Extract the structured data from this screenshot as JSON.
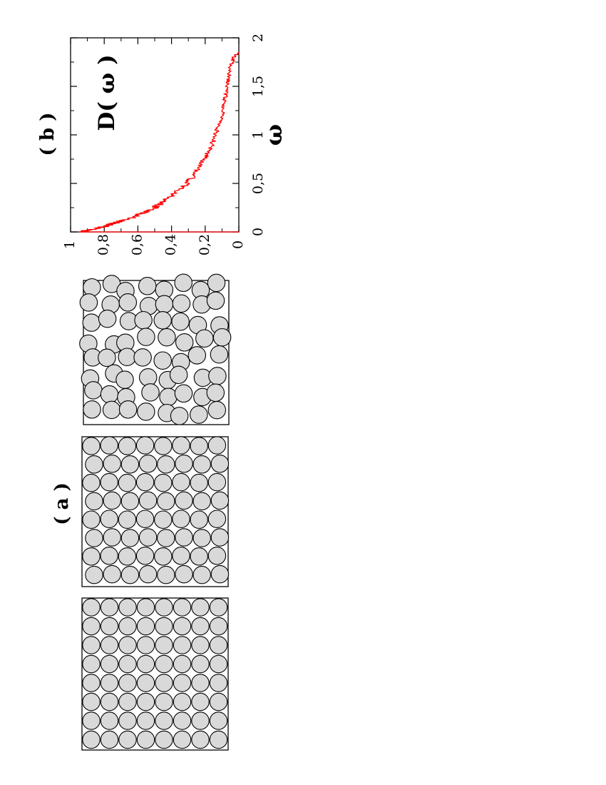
{
  "panel_a": {
    "label": "( a )",
    "packings": [
      {
        "name": "square-lattice",
        "disc_color": "#d9d9d9",
        "edge_color": "#000000"
      },
      {
        "name": "triangular-lattice",
        "disc_color": "#d9d9d9",
        "edge_color": "#000000"
      },
      {
        "name": "disordered-jammed",
        "disc_color": "#d9d9d9",
        "edge_color": "#000000"
      }
    ]
  },
  "panel_b": {
    "label": "( b )",
    "curve_label": "D( ω )"
  },
  "chart_data": {
    "type": "line",
    "title": "",
    "xlabel": "ω",
    "ylabel": "",
    "xlim": [
      0,
      2
    ],
    "ylim": [
      0,
      1
    ],
    "x_ticks": [
      0,
      0.5,
      1,
      1.5,
      2
    ],
    "x_tick_labels": [
      "0",
      "0,5",
      "1",
      "1,5",
      "2"
    ],
    "y_ticks": [
      0,
      0.2,
      0.4,
      0.6,
      0.8,
      1
    ],
    "y_tick_labels": [
      "0",
      "0,2",
      "0,4",
      "0,6",
      "0,8",
      "1"
    ],
    "grid": false,
    "orientation": "rotated 90° counter-clockwise",
    "series": [
      {
        "color": "#ff0000",
        "x": [
          0.0,
          0.02,
          0.05,
          0.1,
          0.15,
          0.2,
          0.25,
          0.3,
          0.4,
          0.5,
          0.6,
          0.7,
          0.8,
          0.9,
          1.0,
          1.1,
          1.2,
          1.3,
          1.4,
          1.5,
          1.6,
          1.7,
          1.8,
          1.85
        ],
        "y": [
          0.95,
          0.9,
          0.81,
          0.72,
          0.63,
          0.56,
          0.5,
          0.46,
          0.38,
          0.31,
          0.26,
          0.22,
          0.19,
          0.16,
          0.14,
          0.12,
          0.1,
          0.09,
          0.08,
          0.07,
          0.06,
          0.05,
          0.03,
          0.0
        ]
      }
    ]
  }
}
